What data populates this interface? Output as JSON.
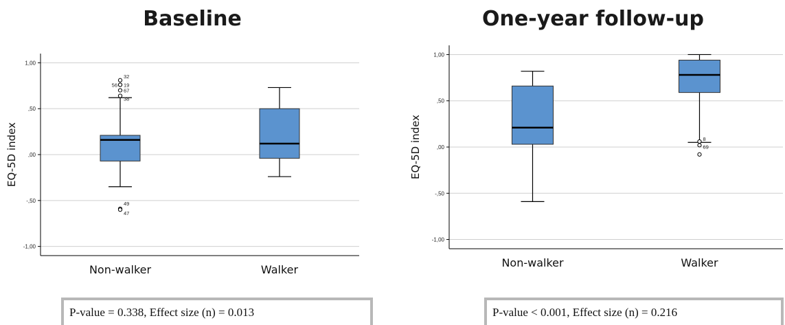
{
  "chart_data": [
    {
      "type": "boxplot",
      "title": "Baseline",
      "ylabel": "EQ-5D index",
      "ylim": [
        -1.1,
        1.1
      ],
      "yticks": [
        1.0,
        0.5,
        0.0,
        -0.5,
        -1.0
      ],
      "ytick_labels": [
        "1,00",
        ",50",
        ",00",
        "-,50",
        "-1,00"
      ],
      "grid": true,
      "categories": [
        "Non-walker",
        "Walker"
      ],
      "boxes": [
        {
          "category": "Non-walker",
          "whisker_low": -0.35,
          "q1": -0.07,
          "median": 0.16,
          "q3": 0.21,
          "whisker_high": 0.62,
          "outliers": [
            {
              "value": 0.81,
              "label": "32"
            },
            {
              "value": 0.76,
              "label": "19"
            },
            {
              "value": 0.76,
              "label": "56"
            },
            {
              "value": 0.7,
              "label": "67"
            },
            {
              "value": 0.64,
              "label": "38"
            },
            {
              "value": -0.59,
              "label": "49"
            },
            {
              "value": -0.6,
              "label": "47"
            }
          ]
        },
        {
          "category": "Walker",
          "whisker_low": -0.24,
          "q1": -0.04,
          "median": 0.12,
          "q3": 0.5,
          "whisker_high": 0.73,
          "outliers": []
        }
      ],
      "annotation": "P-value = 0.338, Effect size (n) = 0.013"
    },
    {
      "type": "boxplot",
      "title": "One-year follow-up",
      "ylabel": "EQ-5D index",
      "ylim": [
        -1.1,
        1.1
      ],
      "yticks": [
        1.0,
        0.5,
        0.0,
        -0.5,
        -1.0
      ],
      "ytick_labels": [
        "1,00",
        ",50",
        ",00",
        "-,50",
        "-1,00"
      ],
      "grid": true,
      "categories": [
        "Non-walker",
        "Walker"
      ],
      "boxes": [
        {
          "category": "Non-walker",
          "whisker_low": -0.59,
          "q1": 0.03,
          "median": 0.21,
          "q3": 0.66,
          "whisker_high": 0.82,
          "outliers": []
        },
        {
          "category": "Walker",
          "whisker_low": 0.05,
          "q1": 0.59,
          "median": 0.78,
          "q3": 0.94,
          "whisker_high": 1.0,
          "outliers": [
            {
              "value": 0.06,
              "label": "8"
            },
            {
              "value": 0.02,
              "label": "69"
            },
            {
              "value": -0.08,
              "label": ""
            }
          ]
        }
      ],
      "annotation": "P-value < 0.001, Effect size (n) = 0.216"
    }
  ]
}
